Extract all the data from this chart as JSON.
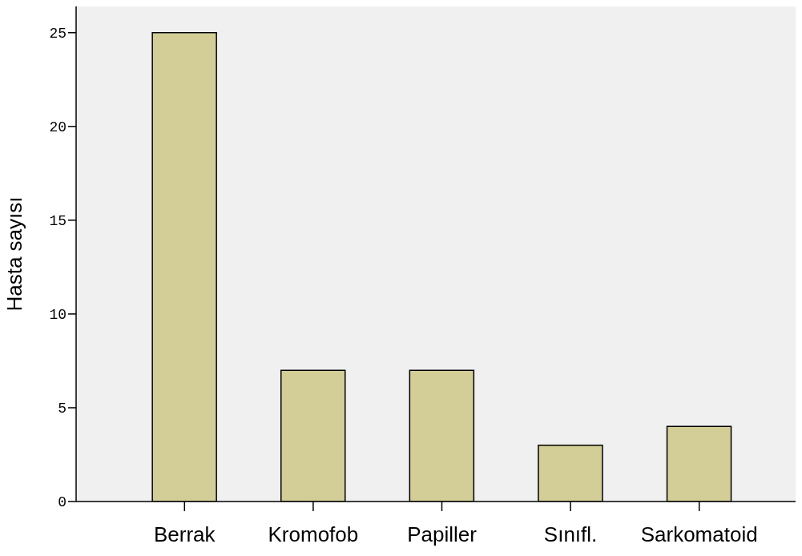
{
  "chart_data": {
    "type": "bar",
    "ylabel": "Hasta sayısı",
    "categories": [
      "Berrak",
      "Kromofob",
      "Papiller",
      "Sınıfl.",
      "Sarkomatoid"
    ],
    "values": [
      25,
      7,
      7,
      3,
      4
    ],
    "color": "#d3ce97",
    "ylim": [
      0,
      26.4
    ],
    "yticks": [
      0,
      5,
      10,
      15,
      20,
      25
    ],
    "grid": false
  }
}
